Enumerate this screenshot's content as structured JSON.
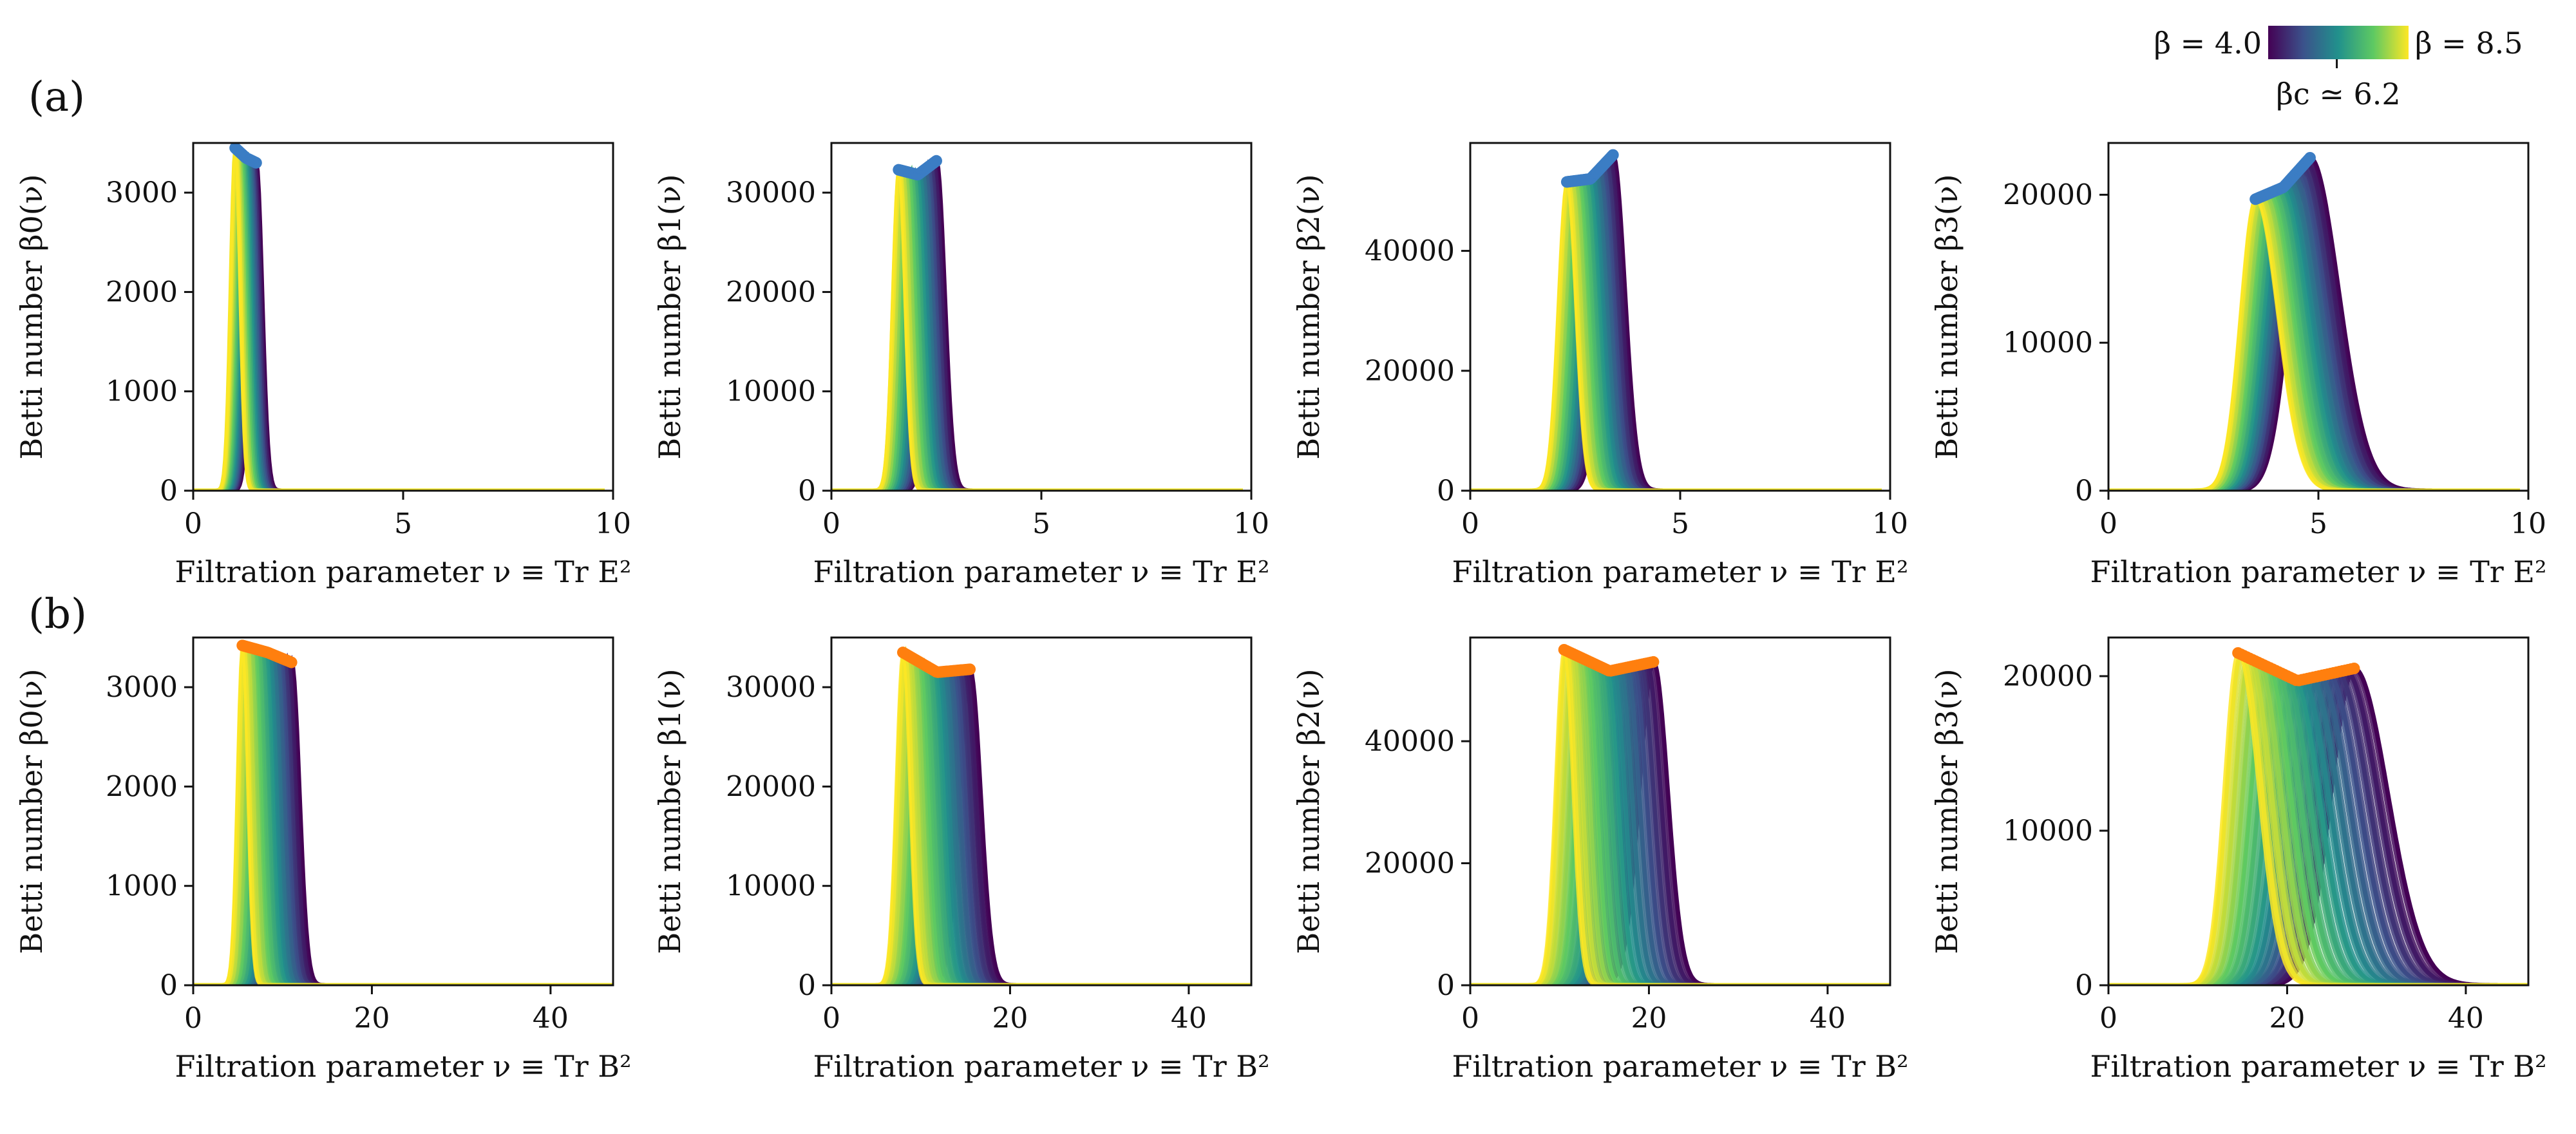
{
  "figure": {
    "row_labels": [
      "(a)",
      "(b)"
    ],
    "colorbar": {
      "left_label": "β = 4.0",
      "right_label": "β = 8.5",
      "mid_label": "βc ≃ 6.2",
      "colormap": [
        "#440154",
        "#3b528b",
        "#21918c",
        "#5ec962",
        "#fde725"
      ],
      "beta_min": 4.0,
      "beta_max": 8.5,
      "beta_c": 6.2
    },
    "ylabels": [
      "Betti number β0(ν)",
      "Betti number β1(ν)",
      "Betti number β2(ν)",
      "Betti number β3(ν)"
    ]
  },
  "chart_data": [
    {
      "type": "line",
      "row": "a",
      "panel": 0,
      "xlabel": "Filtration parameter ν ≡ Tr E²",
      "ylabel": "Betti number β0(ν)",
      "xlim": [
        0,
        10
      ],
      "ylim": [
        0,
        3500
      ],
      "xticks": [
        0,
        5,
        10
      ],
      "yticks": [
        0,
        1000,
        2000,
        3000
      ],
      "series_count": 41,
      "beta_range": [
        4.0,
        8.5
      ],
      "curve_shape": "gaussian",
      "curve_width_rel": 0.16,
      "curve_skew": 0,
      "peak_marker_color": "#3b7dc4",
      "peak_positions": {
        "beta_min": 1.5,
        "beta_max": 1.0
      },
      "peak_heights": {
        "beta_min": 3300,
        "beta_c": 3350,
        "beta_max": 3450
      },
      "x_end": 9.8
    },
    {
      "type": "line",
      "row": "a",
      "panel": 1,
      "xlabel": "Filtration parameter ν ≡ Tr E²",
      "ylabel": "Betti number β1(ν)",
      "xlim": [
        0,
        10
      ],
      "ylim": [
        0,
        35000
      ],
      "xticks": [
        0,
        5,
        10
      ],
      "yticks": [
        0,
        10000,
        20000,
        30000
      ],
      "series_count": 41,
      "beta_range": [
        4.0,
        8.5
      ],
      "curve_shape": "gaussian",
      "curve_width_rel": 0.16,
      "curve_skew": 0,
      "peak_marker_color": "#3b7dc4",
      "peak_positions": {
        "beta_min": 2.5,
        "beta_max": 1.6
      },
      "peak_heights": {
        "beta_min": 33200,
        "beta_c": 31800,
        "beta_max": 32300
      },
      "x_end": 9.8
    },
    {
      "type": "line",
      "row": "a",
      "panel": 2,
      "xlabel": "Filtration parameter ν ≡ Tr E²",
      "ylabel": "Betti number β2(ν)",
      "xlim": [
        0,
        10
      ],
      "ylim": [
        0,
        58000
      ],
      "xticks": [
        0,
        5,
        10
      ],
      "yticks": [
        0,
        20000,
        40000
      ],
      "series_count": 41,
      "beta_range": [
        4.0,
        8.5
      ],
      "curve_shape": "gaussian",
      "curve_width_rel": 0.18,
      "curve_skew": 0,
      "peak_marker_color": "#3b7dc4",
      "peak_positions": {
        "beta_min": 3.4,
        "beta_max": 2.3
      },
      "peak_heights": {
        "beta_min": 56000,
        "beta_c": 52000,
        "beta_max": 51500
      },
      "x_end": 9.8
    },
    {
      "type": "line",
      "row": "a",
      "panel": 3,
      "xlabel": "Filtration parameter ν ≡ Tr E²",
      "ylabel": "Betti number β3(ν)",
      "xlim": [
        0,
        10
      ],
      "ylim": [
        0,
        23500
      ],
      "xticks": [
        0,
        5,
        10
      ],
      "yticks": [
        0,
        10000,
        20000
      ],
      "series_count": 41,
      "beta_range": [
        4.0,
        8.5
      ],
      "curve_shape": "gaussian",
      "curve_width_rel": 0.23,
      "curve_skew": 0.45,
      "peak_marker_color": "#3b7dc4",
      "peak_positions": {
        "beta_min": 4.8,
        "beta_max": 3.5
      },
      "peak_heights": {
        "beta_min": 22500,
        "beta_c": 20500,
        "beta_max": 19700
      },
      "x_end": 9.8
    },
    {
      "type": "line",
      "row": "b",
      "panel": 0,
      "xlabel": "Filtration parameter ν ≡ Tr B²",
      "ylabel": "Betti number β0(ν)",
      "xlim": [
        0,
        47
      ],
      "ylim": [
        0,
        3500
      ],
      "xticks": [
        0,
        20,
        40
      ],
      "yticks": [
        0,
        1000,
        2000,
        3000
      ],
      "series_count": 41,
      "beta_range": [
        4.0,
        8.5
      ],
      "curve_shape": "gaussian",
      "curve_width_rel": 0.16,
      "curve_skew": 0,
      "peak_marker_color": "#ff7f0e",
      "peak_positions": {
        "beta_min": 11.0,
        "beta_max": 5.5
      },
      "peak_heights": {
        "beta_min": 3250,
        "beta_c": 3350,
        "beta_max": 3420
      },
      "x_end": 47
    },
    {
      "type": "line",
      "row": "b",
      "panel": 1,
      "xlabel": "Filtration parameter ν ≡ Tr B²",
      "ylabel": "Betti number β1(ν)",
      "xlim": [
        0,
        47
      ],
      "ylim": [
        0,
        35000
      ],
      "xticks": [
        0,
        20,
        40
      ],
      "yticks": [
        0,
        10000,
        20000,
        30000
      ],
      "series_count": 41,
      "beta_range": [
        4.0,
        8.5
      ],
      "curve_shape": "gaussian",
      "curve_width_rel": 0.17,
      "curve_skew": 0,
      "peak_marker_color": "#ff7f0e",
      "peak_positions": {
        "beta_min": 15.5,
        "beta_max": 8.0
      },
      "peak_heights": {
        "beta_min": 31800,
        "beta_c": 31500,
        "beta_max": 33500
      },
      "x_end": 47
    },
    {
      "type": "line",
      "row": "b",
      "panel": 2,
      "xlabel": "Filtration parameter ν ≡ Tr B²",
      "ylabel": "Betti number β2(ν)",
      "xlim": [
        0,
        47
      ],
      "ylim": [
        0,
        57000
      ],
      "xticks": [
        0,
        20,
        40
      ],
      "yticks": [
        0,
        20000,
        40000
      ],
      "series_count": 41,
      "beta_range": [
        4.0,
        8.5
      ],
      "curve_shape": "gaussian",
      "curve_width_rel": 0.18,
      "curve_skew": 0,
      "peak_marker_color": "#ff7f0e",
      "peak_positions": {
        "beta_min": 20.5,
        "beta_max": 10.5
      },
      "peak_heights": {
        "beta_min": 53000,
        "beta_c": 51500,
        "beta_max": 55000
      },
      "x_end": 47
    },
    {
      "type": "line",
      "row": "b",
      "panel": 3,
      "xlabel": "Filtration parameter ν ≡ Tr B²",
      "ylabel": "Betti number β3(ν)",
      "xlim": [
        0,
        47
      ],
      "ylim": [
        0,
        22500
      ],
      "xticks": [
        0,
        20,
        40
      ],
      "yticks": [
        0,
        10000,
        20000
      ],
      "series_count": 41,
      "beta_range": [
        4.0,
        8.5
      ],
      "curve_shape": "gaussian",
      "curve_width_rel": 0.23,
      "curve_skew": 0.45,
      "peak_marker_color": "#ff7f0e",
      "peak_positions": {
        "beta_min": 27.5,
        "beta_max": 14.5
      },
      "peak_heights": {
        "beta_min": 20500,
        "beta_c": 19700,
        "beta_max": 21500
      },
      "x_end": 47
    }
  ]
}
